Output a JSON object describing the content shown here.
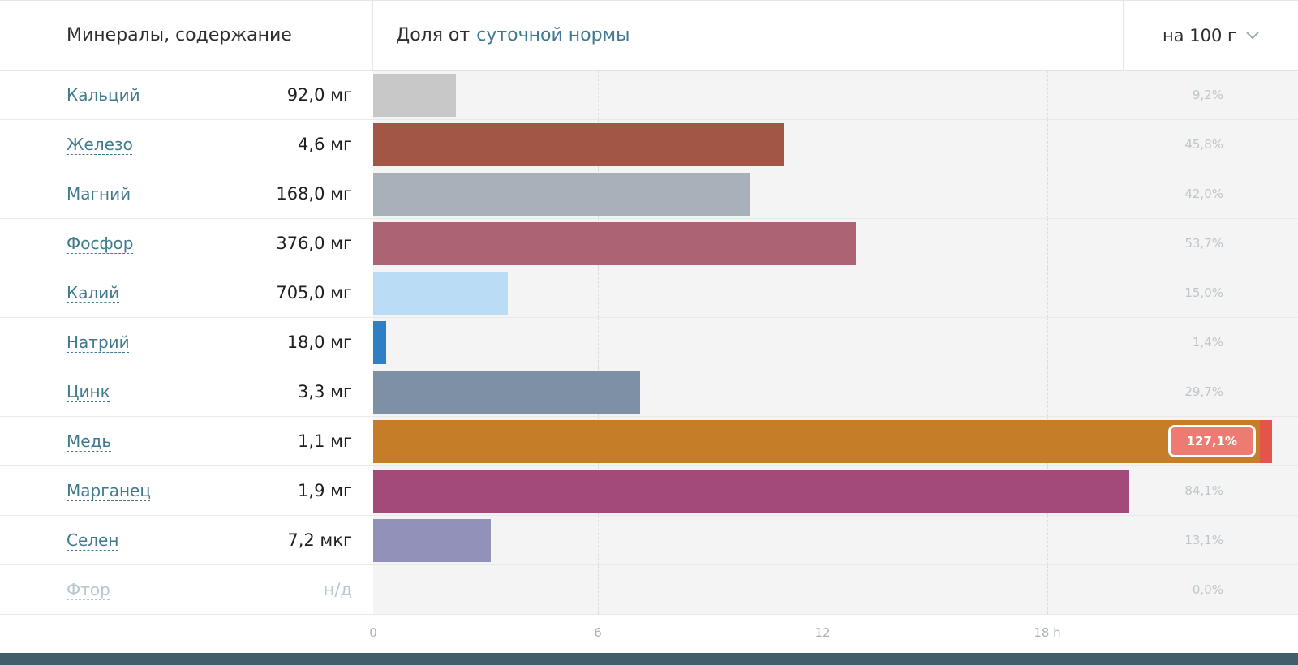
{
  "header": {
    "left_title": "Минералы, содержание",
    "share_prefix": "Доля от",
    "share_link": "суточной нормы",
    "unit_label": "на 100 г"
  },
  "rows": [
    {
      "name": "Кальций",
      "amount": "92,0 мг",
      "percent": "9,2%",
      "value": 9.2,
      "color": "#c8c8c8",
      "muted": false
    },
    {
      "name": "Железо",
      "amount": "4,6 мг",
      "percent": "45,8%",
      "value": 45.8,
      "color": "#a25646",
      "muted": false
    },
    {
      "name": "Магний",
      "amount": "168,0 мг",
      "percent": "42,0%",
      "value": 42.0,
      "color": "#a8b1b9",
      "muted": false
    },
    {
      "name": "Фосфор",
      "amount": "376,0 мг",
      "percent": "53,7%",
      "value": 53.7,
      "color": "#ac6474",
      "muted": false
    },
    {
      "name": "Калий",
      "amount": "705,0 мг",
      "percent": "15,0%",
      "value": 15.0,
      "color": "#badcf4",
      "muted": false
    },
    {
      "name": "Натрий",
      "amount": "18,0 мг",
      "percent": "1,4%",
      "value": 1.4,
      "color": "#2f80c2",
      "muted": false
    },
    {
      "name": "Цинк",
      "amount": "3,3 мг",
      "percent": "29,7%",
      "value": 29.7,
      "color": "#7e90a5",
      "muted": false
    },
    {
      "name": "Медь",
      "amount": "1,1 мг",
      "percent": "127,1%",
      "value": 127.1,
      "color": "#c57d28",
      "muted": false
    },
    {
      "name": "Марганец",
      "amount": "1,9 мг",
      "percent": "84,1%",
      "value": 84.1,
      "color": "#a34a7b",
      "muted": false
    },
    {
      "name": "Селен",
      "amount": "7,2 мкг",
      "percent": "13,1%",
      "value": 13.1,
      "color": "#9191ba",
      "muted": false
    },
    {
      "name": "Фтор",
      "amount": "н/д",
      "percent": "0,0%",
      "value": 0,
      "color": "#cccccc",
      "muted": true
    }
  ],
  "axis": {
    "ticks": [
      {
        "label": "0",
        "pos": 0
      },
      {
        "label": "6",
        "pos": 25
      },
      {
        "label": "12",
        "pos": 50
      },
      {
        "label": "18 h",
        "pos": 75
      }
    ]
  },
  "colors": {
    "chart_background": "#f4f4f4",
    "gridline": "#dcdcdc",
    "link": "#41798d",
    "muted_link": "#b7c6cf",
    "percent_label": "#bfc5c9",
    "overflow_badge": "#ee7b71",
    "overflow_cap": "#e4544b",
    "footer_strip": "#425d6b"
  },
  "chart_data": {
    "type": "bar",
    "orientation": "horizontal",
    "title": "Доля от суточной нормы",
    "unit_selector": "на 100 г",
    "categories": [
      "Кальций",
      "Железо",
      "Магний",
      "Фосфор",
      "Калий",
      "Натрий",
      "Цинк",
      "Медь",
      "Марганец",
      "Селен",
      "Фтор"
    ],
    "amounts": [
      "92,0 мг",
      "4,6 мг",
      "168,0 мг",
      "376,0 мг",
      "705,0 мг",
      "18,0 мг",
      "3,3 мг",
      "1,1 мг",
      "1,9 мг",
      "7,2 мкг",
      "н/д"
    ],
    "values_percent": [
      9.2,
      45.8,
      42.0,
      53.7,
      15.0,
      1.4,
      29.7,
      127.1,
      84.1,
      13.1,
      0.0
    ],
    "bar_colors": [
      "#c8c8c8",
      "#a25646",
      "#a8b1b9",
      "#ac6474",
      "#badcf4",
      "#2f80c2",
      "#7e90a5",
      "#c57d28",
      "#a34a7b",
      "#9191ba",
      null
    ],
    "x_tick_labels": [
      "0",
      "6",
      "12",
      "18 h"
    ],
    "grid": "dashed-vertical",
    "overflow_row": "Медь",
    "overflow_label": "127,1%"
  }
}
